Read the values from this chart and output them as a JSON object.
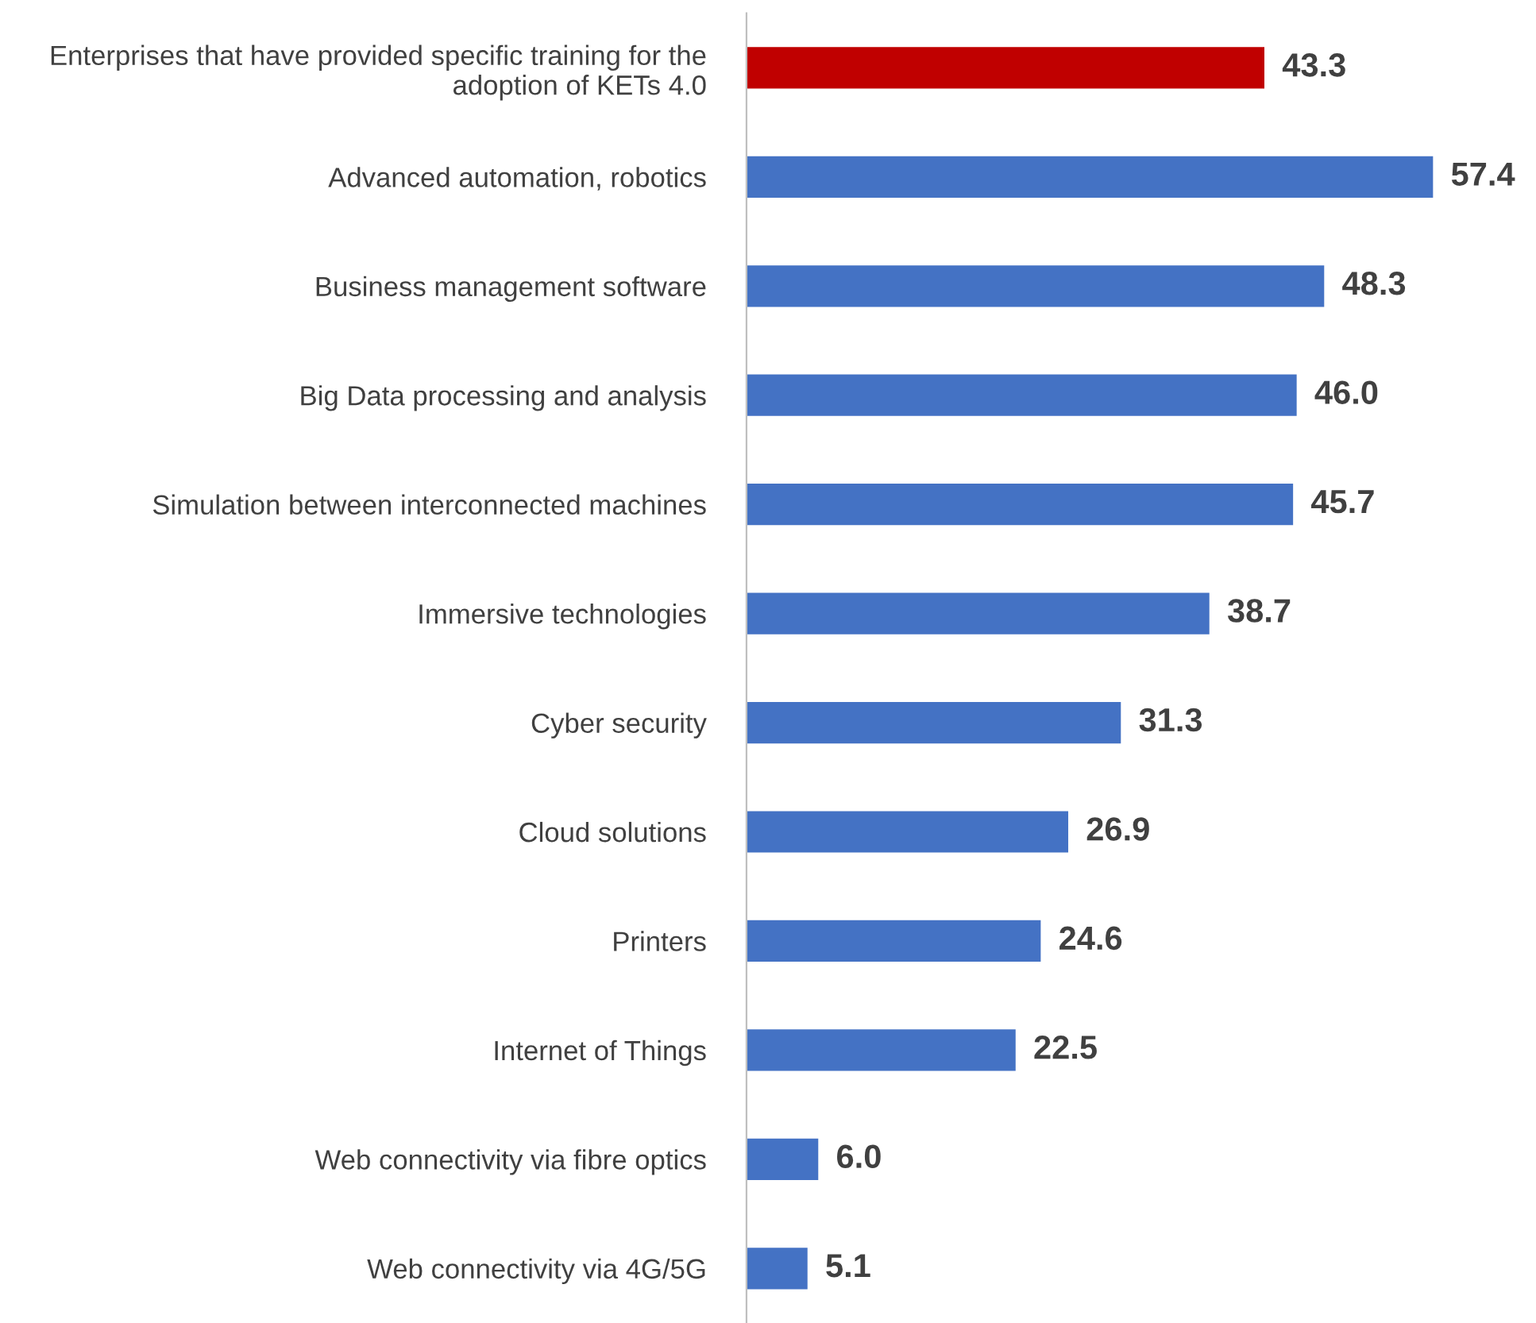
{
  "chart_data": {
    "type": "bar",
    "orientation": "horizontal",
    "categories": [
      "Enterprises that have provided specific training for the\nadoption of KETs 4.0",
      "Advanced automation, robotics",
      "Business management software",
      "Big Data processing and analysis",
      "Simulation between interconnected machines",
      "Immersive technologies",
      "Cyber security",
      "Cloud solutions",
      "Printers",
      "Internet of Things",
      "Web connectivity via fibre optics",
      "Web connectivity via 4G/5G"
    ],
    "values": [
      43.3,
      57.4,
      48.3,
      46.0,
      45.7,
      38.7,
      31.3,
      26.9,
      24.6,
      22.5,
      6.0,
      5.1
    ],
    "colors": [
      "#c00000",
      "#4472c4",
      "#4472c4",
      "#4472c4",
      "#4472c4",
      "#4472c4",
      "#4472c4",
      "#4472c4",
      "#4472c4",
      "#4472c4",
      "#4472c4",
      "#4472c4"
    ],
    "value_labels": [
      "43.3",
      "57.4",
      "48.3",
      "46.0",
      "45.7",
      "38.7",
      "31.3",
      "26.9",
      "24.6",
      "22.5",
      "6.0",
      "5.1"
    ],
    "tick_labels": "y"
  }
}
